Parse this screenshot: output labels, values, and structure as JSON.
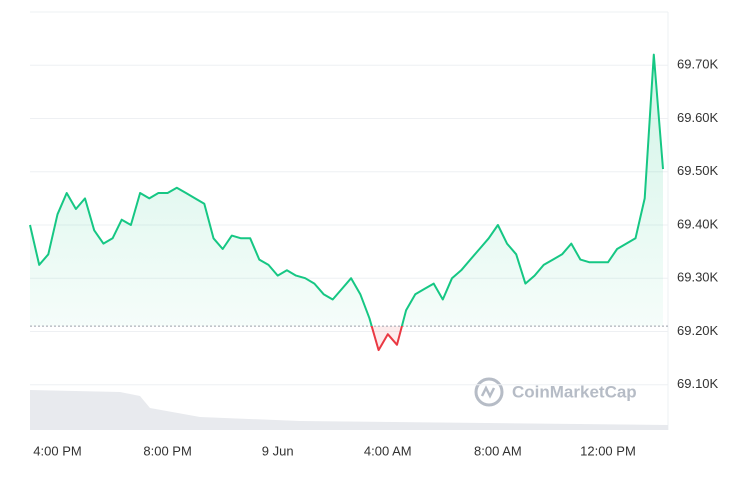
{
  "chart_data": {
    "type": "line",
    "watermark": "CoinMarketCap",
    "categories": [
      null,
      null,
      null,
      "4:00 PM",
      null,
      null,
      null,
      null,
      null,
      null,
      null,
      null,
      null,
      null,
      null,
      "8:00 PM",
      null,
      null,
      null,
      null,
      null,
      null,
      null,
      null,
      null,
      null,
      null,
      "9 Jun",
      null,
      null,
      null,
      null,
      null,
      null,
      null,
      null,
      null,
      null,
      null,
      "4:00 AM",
      null,
      null,
      null,
      null,
      null,
      null,
      null,
      null,
      null,
      null,
      null,
      "8:00 AM",
      null,
      null,
      null,
      null,
      null,
      null,
      null,
      null,
      null,
      null,
      null,
      "12:00 PM",
      null,
      null,
      null,
      null,
      null,
      null
    ],
    "series": [
      {
        "color": "#16c784",
        "below_color": "#ea3943",
        "values": [
          69400,
          69325,
          69345,
          69420,
          69460,
          69430,
          69450,
          69390,
          69365,
          69375,
          69410,
          69400,
          69460,
          69450,
          69460,
          69460,
          69470,
          69460,
          69450,
          69440,
          69375,
          69355,
          69380,
          69375,
          69375,
          69335,
          69325,
          69305,
          69315,
          69305,
          69300,
          69290,
          69270,
          69260,
          69280,
          69300,
          69270,
          69225,
          69165,
          69195,
          69175,
          69240,
          69270,
          69280,
          69290,
          69260,
          69300,
          69315,
          69335,
          69355,
          69375,
          69400,
          69365,
          69345,
          69290,
          69305,
          69325,
          69335,
          69345,
          69365,
          69335,
          69330,
          69330,
          69330,
          69355,
          69365,
          69375,
          69450,
          69720,
          69505
        ]
      }
    ],
    "baseline": 69210,
    "ylim": [
      69015,
      69800
    ],
    "yticks": [
      {
        "value": 69100,
        "label": "69.10K"
      },
      {
        "value": 69200,
        "label": "69.20K"
      },
      {
        "value": 69300,
        "label": "69.30K"
      },
      {
        "value": 69400,
        "label": "69.40K"
      },
      {
        "value": 69500,
        "label": "69.50K"
      },
      {
        "value": 69600,
        "label": "69.60K"
      },
      {
        "value": 69700,
        "label": "69.70K"
      }
    ],
    "grid": true
  }
}
